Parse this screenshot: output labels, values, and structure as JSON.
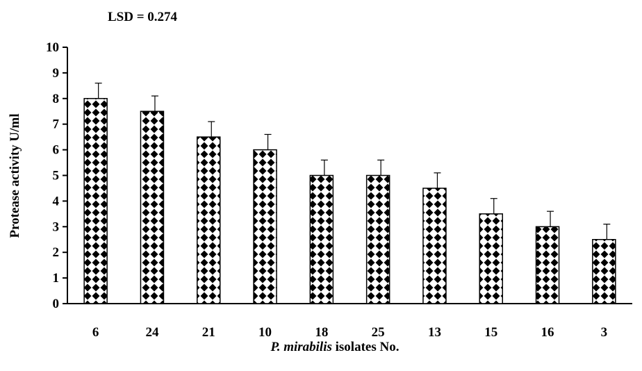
{
  "chart_data": {
    "type": "bar",
    "annotation": "LSD = 0.274",
    "xlabel_italic": "P. mirabilis",
    "xlabel_rest": " isolates No.",
    "ylabel": "Protease activity U/ml",
    "categories": [
      "6",
      "24",
      "21",
      "10",
      "18",
      "25",
      "13",
      "15",
      "16",
      "3"
    ],
    "values": [
      8,
      7.5,
      6.5,
      6,
      5,
      5,
      4.5,
      3.5,
      3,
      2.5
    ],
    "error_upper": [
      0.6,
      0.6,
      0.6,
      0.6,
      0.6,
      0.6,
      0.6,
      0.6,
      0.6,
      0.6
    ],
    "ylim": [
      0,
      10
    ],
    "yticks": [
      "0",
      "1",
      "2",
      "3",
      "4",
      "5",
      "6",
      "7",
      "8",
      "9",
      "10"
    ],
    "grid": false,
    "legend": "none",
    "bar_pattern": "black-diamond-checker",
    "colors": {
      "bar_fill": "#000000",
      "bar_bg": "#ffffff",
      "axis": "#000000"
    }
  }
}
